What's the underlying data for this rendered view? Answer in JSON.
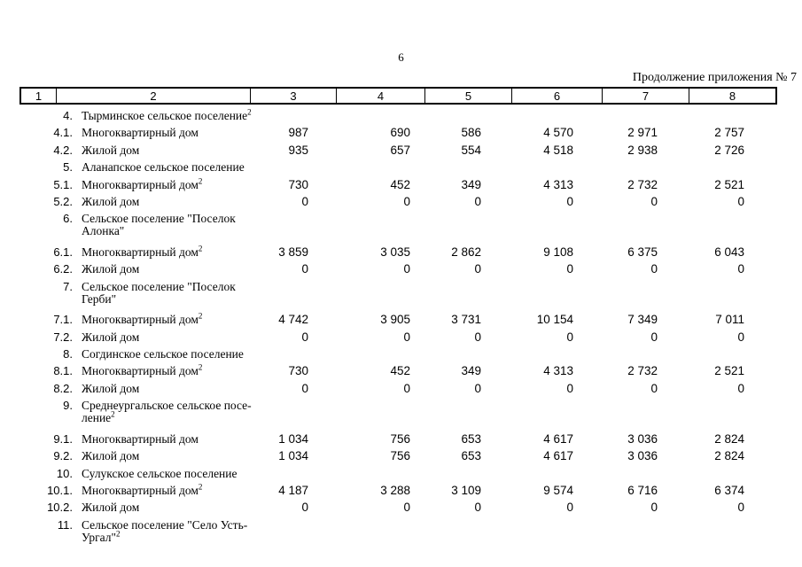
{
  "page": {
    "number": "6",
    "continuation_note": "Продолжение приложения № 7"
  },
  "table": {
    "header_cols": [
      "1",
      "2",
      "3",
      "4",
      "5",
      "6",
      "7",
      "8"
    ],
    "rows": [
      {
        "num": "4.",
        "label_lines": [
          "Тырминское сельское поселение"
        ],
        "sup": "2",
        "values": null
      },
      {
        "num": "4.1.",
        "label_lines": [
          "Многоквартирный дом"
        ],
        "sup": "",
        "values": [
          "987",
          "690",
          "586",
          "4 570",
          "2 971",
          "2 757"
        ]
      },
      {
        "num": "4.2.",
        "label_lines": [
          "Жилой дом"
        ],
        "sup": "",
        "values": [
          "935",
          "657",
          "554",
          "4 518",
          "2 938",
          "2 726"
        ]
      },
      {
        "num": "5.",
        "label_lines": [
          "Аланапское сельское поселение"
        ],
        "sup": "",
        "values": null
      },
      {
        "num": "5.1.",
        "label_lines": [
          "Многоквартирный дом"
        ],
        "sup": "2",
        "values": [
          "730",
          "452",
          "349",
          "4 313",
          "2 732",
          "2 521"
        ]
      },
      {
        "num": "5.2.",
        "label_lines": [
          "Жилой дом"
        ],
        "sup": "",
        "values": [
          "0",
          "0",
          "0",
          "0",
          "0",
          "0"
        ]
      },
      {
        "num": "6.",
        "label_lines": [
          "Сельское поселение \"Поселок",
          "Алонка\""
        ],
        "sup": "",
        "values": null
      },
      {
        "num": "6.1.",
        "label_lines": [
          "Многоквартирный дом"
        ],
        "sup": "2",
        "values": [
          "3 859",
          "3 035",
          "2 862",
          "9 108",
          "6 375",
          "6 043"
        ]
      },
      {
        "num": "6.2.",
        "label_lines": [
          "Жилой дом"
        ],
        "sup": "",
        "values": [
          "0",
          "0",
          "0",
          "0",
          "0",
          "0"
        ]
      },
      {
        "num": "7.",
        "label_lines": [
          "Сельское поселение \"Поселок",
          "Герби\""
        ],
        "sup": "",
        "values": null
      },
      {
        "num": "7.1.",
        "label_lines": [
          "Многоквартирный дом"
        ],
        "sup": "2",
        "values": [
          "4 742",
          "3 905",
          "3 731",
          "10 154",
          "7 349",
          "7 011"
        ]
      },
      {
        "num": "7.2.",
        "label_lines": [
          "Жилой дом"
        ],
        "sup": "",
        "values": [
          "0",
          "0",
          "0",
          "0",
          "0",
          "0"
        ]
      },
      {
        "num": "8.",
        "label_lines": [
          "Согдинское сельское поселение"
        ],
        "sup": "",
        "values": null
      },
      {
        "num": "8.1.",
        "label_lines": [
          "Многоквартирный дом"
        ],
        "sup": "2",
        "values": [
          "730",
          "452",
          "349",
          "4 313",
          "2 732",
          "2 521"
        ]
      },
      {
        "num": "8.2.",
        "label_lines": [
          "Жилой дом"
        ],
        "sup": "",
        "values": [
          "0",
          "0",
          "0",
          "0",
          "0",
          "0"
        ]
      },
      {
        "num": "9.",
        "label_lines": [
          "Среднеургальское сельское посе-",
          "ление"
        ],
        "sup": "2",
        "values": null
      },
      {
        "num": "9.1.",
        "label_lines": [
          "Многоквартирный дом"
        ],
        "sup": "",
        "values": [
          "1 034",
          "756",
          "653",
          "4 617",
          "3 036",
          "2 824"
        ]
      },
      {
        "num": "9.2.",
        "label_lines": [
          "Жилой дом"
        ],
        "sup": "",
        "values": [
          "1 034",
          "756",
          "653",
          "4 617",
          "3 036",
          "2 824"
        ]
      },
      {
        "num": "10.",
        "label_lines": [
          "Сулукское сельское поселение"
        ],
        "sup": "",
        "values": null
      },
      {
        "num": "10.1.",
        "label_lines": [
          "Многоквартирный дом"
        ],
        "sup": "2",
        "values": [
          "4 187",
          "3 288",
          "3 109",
          "9 574",
          "6 716",
          "6 374"
        ]
      },
      {
        "num": "10.2.",
        "label_lines": [
          "Жилой дом"
        ],
        "sup": "",
        "values": [
          "0",
          "0",
          "0",
          "0",
          "0",
          "0"
        ]
      },
      {
        "num": "11.",
        "label_lines": [
          "Сельское поселение \"Село Усть-",
          "Ургал\""
        ],
        "sup": "2",
        "values": null
      }
    ]
  }
}
